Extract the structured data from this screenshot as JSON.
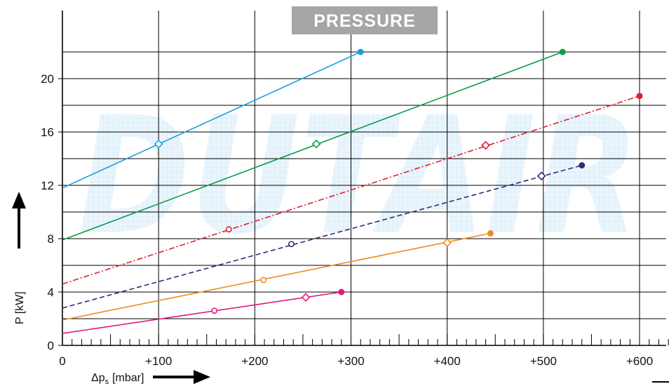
{
  "chart_data": {
    "type": "line",
    "title": "PRESSURE",
    "xlabel": "Δp",
    "xlabel_sub": "s",
    "xlabel_unit": "[mbar]",
    "ylabel": "P [kW]",
    "watermark": "DUTAIR",
    "xlim": [
      0,
      630
    ],
    "ylim": [
      0,
      24
    ],
    "x_ticks": [
      0,
      100,
      200,
      300,
      400,
      500,
      600
    ],
    "x_tick_labels": [
      "0",
      "+100",
      "+200",
      "+300",
      "+400",
      "+500",
      "+600"
    ],
    "y_ticks": [
      0,
      4,
      8,
      12,
      16,
      20
    ],
    "y_tick_labels": [
      "0",
      "4",
      "8",
      "12",
      "16",
      "20"
    ],
    "grid": true,
    "title_bg_color": "#a6a6a6",
    "series": [
      {
        "color": "#1aa0dc",
        "dash": "solid",
        "x": [
          0,
          310
        ],
        "y": [
          11.8,
          22.0
        ],
        "markers": [
          {
            "x": 100,
            "y": 15.1,
            "shape": "diamond"
          },
          {
            "x": 310,
            "y": 22.0,
            "shape": "dot"
          }
        ]
      },
      {
        "color": "#109a4a",
        "dash": "solid",
        "x": [
          0,
          520
        ],
        "y": [
          7.9,
          22.0
        ],
        "markers": [
          {
            "x": 264,
            "y": 15.1,
            "shape": "diamond"
          },
          {
            "x": 520,
            "y": 22.0,
            "shape": "dot"
          }
        ]
      },
      {
        "color": "#e0202a",
        "dash": "dashdot",
        "x": [
          0,
          600
        ],
        "y": [
          4.6,
          18.7
        ],
        "markers": [
          {
            "x": 173,
            "y": 8.7,
            "shape": "circle"
          },
          {
            "x": 440,
            "y": 15.0,
            "shape": "diamond"
          },
          {
            "x": 600,
            "y": 18.7,
            "shape": "dot"
          }
        ]
      },
      {
        "color": "#2e2d7a",
        "dash": "dashed",
        "x": [
          0,
          540
        ],
        "y": [
          2.8,
          13.5
        ],
        "markers": [
          {
            "x": 238,
            "y": 7.6,
            "shape": "circle"
          },
          {
            "x": 498,
            "y": 12.7,
            "shape": "diamond"
          },
          {
            "x": 540,
            "y": 13.5,
            "shape": "dot"
          }
        ]
      },
      {
        "color": "#f08a20",
        "dash": "solid",
        "x": [
          0,
          445
        ],
        "y": [
          1.9,
          8.4
        ],
        "markers": [
          {
            "x": 209,
            "y": 4.9,
            "shape": "circle"
          },
          {
            "x": 400,
            "y": 7.7,
            "shape": "diamond"
          },
          {
            "x": 445,
            "y": 8.4,
            "shape": "dot"
          }
        ]
      },
      {
        "color": "#e0187a",
        "dash": "solid",
        "x": [
          0,
          290
        ],
        "y": [
          0.9,
          4.0
        ],
        "markers": [
          {
            "x": 158,
            "y": 2.6,
            "shape": "circle"
          },
          {
            "x": 253,
            "y": 3.6,
            "shape": "diamond"
          },
          {
            "x": 290,
            "y": 4.0,
            "shape": "dot"
          }
        ]
      }
    ]
  }
}
